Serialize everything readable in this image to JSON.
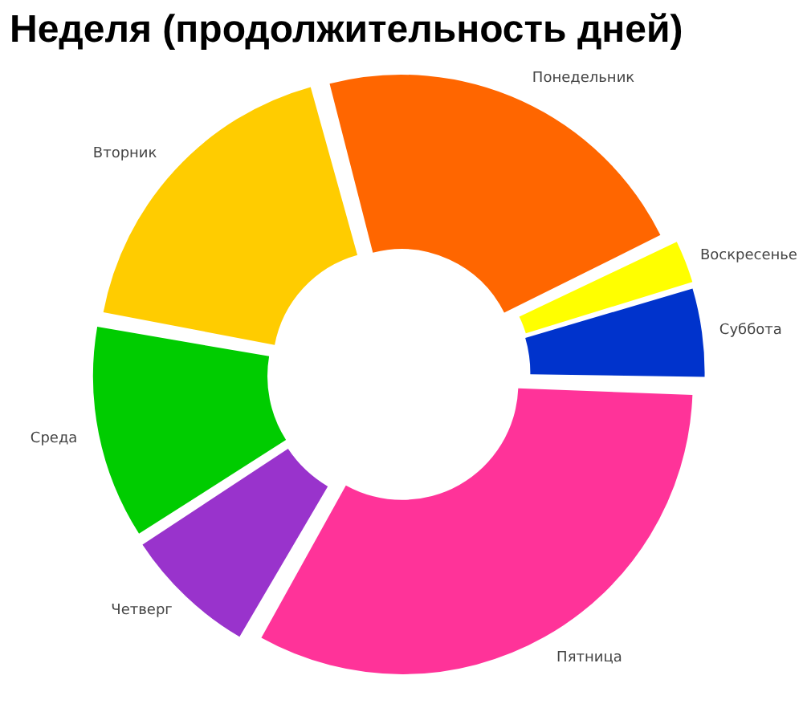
{
  "chart_data": {
    "type": "donut",
    "title": "Неделя (продолжительность дней)",
    "categories": [
      "Понедельник",
      "Воскресенье",
      "Суббота",
      "Пятница",
      "Четверг",
      "Среда",
      "Вторник"
    ],
    "values": [
      22,
      2.5,
      5,
      33,
      7.5,
      12,
      18
    ],
    "colors": [
      "#ff6600",
      "#ffff00",
      "#0033cc",
      "#ff3399",
      "#9933cc",
      "#00cc00",
      "#ffcc00"
    ]
  }
}
